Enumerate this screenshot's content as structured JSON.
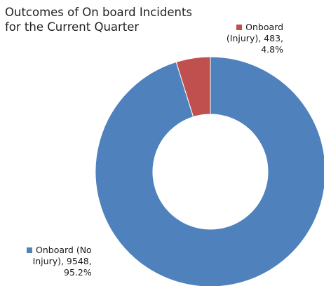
{
  "chart_data": {
    "type": "pie",
    "title_lines": [
      "Outcomes of On board Incidents",
      "for the Current Quarter"
    ],
    "donut": true,
    "slices": [
      {
        "name": "Onboard (Injury)",
        "value": 483,
        "percent": "4.8%",
        "color": "#c0504d",
        "label_lines": [
          "Onboard",
          "(Injury), 483,",
          "4.8%"
        ]
      },
      {
        "name": "Onboard (No Injury)",
        "value": 9548,
        "percent": "95.2%",
        "color": "#4f81bd",
        "label_lines": [
          "Onboard (No",
          "Injury), 9548,",
          "95.2%"
        ]
      }
    ]
  }
}
